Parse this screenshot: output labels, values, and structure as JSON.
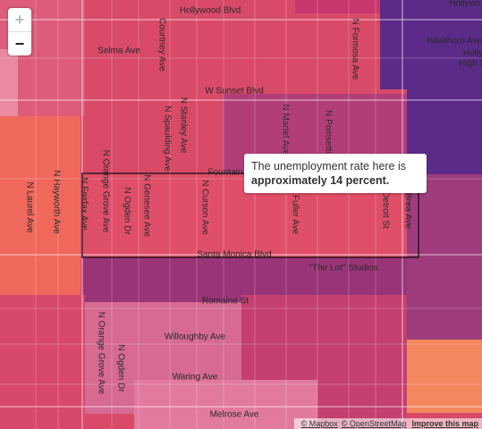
{
  "zoom_controls": {
    "zoom_in": "+",
    "zoom_out": "−"
  },
  "street_labels": [
    "Hollywood Blvd",
    "Selma Ave",
    "Courtney Ave",
    "N Formosa Ave",
    "Hollywo",
    "Hawthorn Ave",
    "Holly",
    "High S",
    "W Sunset Blvd",
    "N Stanley Ave",
    "N Spaulding Ave",
    "N Martel Ave",
    "N Poinsettia",
    "Fountain",
    "N Laurel Ave",
    "N Hayworth Ave",
    "N Fairfax Ave",
    "N Orange Grove Ave",
    "N Ogden Dr",
    "N Genesee Ave",
    "N Curson Ave",
    "N Fuller Ave",
    "N Detroit St",
    "Brea Ave",
    "Santa Monica Blvd",
    "\"The Lot\" Studios",
    "Romaine St",
    "Willoughby Ave",
    "N Orange Grove Ave",
    "N Ogden Dr",
    "Waring Ave",
    "Melrose Ave"
  ],
  "tooltip": {
    "text": "The unemployment rate here is",
    "emphasis": "approximately 14 percent."
  },
  "attribution": [
    "© Mapbox",
    "© OpenStreetMap",
    "Improve this map"
  ]
}
